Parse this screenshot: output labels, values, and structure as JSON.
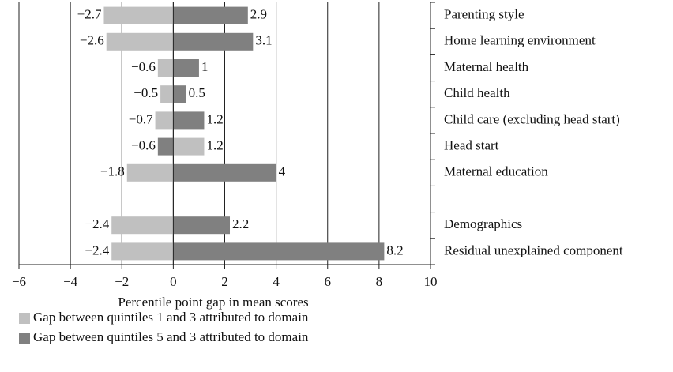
{
  "chart_data": {
    "type": "bar",
    "orientation": "horizontal",
    "xlabel": "Percentile point gap in mean scores",
    "categories": [
      "Parenting style",
      "Home learning environment",
      "Maternal health",
      "Child health",
      "Child care (excluding head start)",
      "Head start",
      "Maternal education",
      null,
      "Demographics",
      "Residual unexplained component"
    ],
    "series": [
      {
        "name": "Gap between quintiles 1 and 3 attributed to domain",
        "color": "#c0c0c0",
        "colors": [
          "#c0c0c0",
          "#c0c0c0",
          "#c0c0c0",
          "#c0c0c0",
          "#c0c0c0",
          "#808080",
          "#c0c0c0",
          null,
          "#c0c0c0",
          "#c0c0c0"
        ],
        "values": [
          -2.7,
          -2.6,
          -0.6,
          -0.5,
          -0.7,
          -0.6,
          -1.8,
          null,
          -2.4,
          -2.4
        ],
        "value_labels": [
          "−2.7",
          "−2.6",
          "−0.6",
          "−0.5",
          "−0.7",
          "−0.6",
          "−1.8",
          null,
          "−2.4",
          "−2.4"
        ]
      },
      {
        "name": "Gap between quintiles 5 and 3 attributed to domain",
        "color": "#808080",
        "colors": [
          "#808080",
          "#808080",
          "#808080",
          "#808080",
          "#808080",
          "#c0c0c0",
          "#808080",
          null,
          "#808080",
          "#808080"
        ],
        "values": [
          2.9,
          3.1,
          1,
          0.5,
          1.2,
          1.2,
          4,
          null,
          2.2,
          8.2
        ]
      }
    ],
    "xlim": [
      -6,
      10
    ],
    "xticks": [
      {
        "value": -6,
        "label": "−6"
      },
      {
        "value": -4,
        "label": "−4"
      },
      {
        "value": -2,
        "label": "−2"
      },
      0,
      2,
      4,
      6,
      8,
      10
    ],
    "grid": true,
    "legend": "bottom-left"
  }
}
